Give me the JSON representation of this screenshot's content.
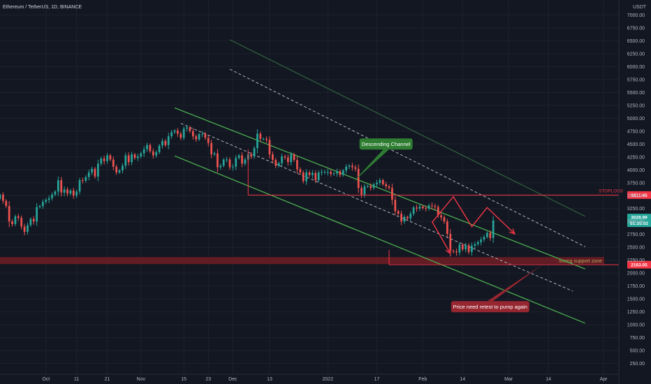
{
  "header": {
    "title": "Ethereum / TetherUS, 1D, BINANCE",
    "currency": "USDT"
  },
  "colors": {
    "background": "#131722",
    "bull": "#26a69a",
    "bear": "#ef5350",
    "channel": "#4caf50",
    "stoploss": "#f23645",
    "zone": "#6b1d24",
    "arrow": "#f23645",
    "price_tag": "#26a69a",
    "grid": "#1e222d"
  },
  "chart_data": {
    "type": "candlestick",
    "y_axis": {
      "min": 150,
      "max": 7100,
      "ticks": [
        7000,
        6750,
        6500,
        6250,
        6000,
        5750,
        5500,
        5250,
        5000,
        4750,
        4500,
        4250,
        4000,
        3750,
        3500,
        3250,
        3000,
        2750,
        2500,
        2250,
        2000,
        1750,
        1500,
        1250,
        1000,
        750,
        500,
        250
      ],
      "tick_labels": [
        "7000.00",
        "6750.00",
        "6500.00",
        "6250.00",
        "6000.00",
        "5750.00",
        "5500.00",
        "5250.00",
        "5000.00",
        "4750.00",
        "4500.00",
        "4250.00",
        "4000.00",
        "3750.00",
        "3500.00",
        "3250.00",
        "3000.00",
        "2750.00",
        "2500.00",
        "2250.00",
        "2000.00",
        "1750.00",
        "1500.00",
        "1250.00",
        "1000.00",
        "750.00",
        "500.00",
        "250.00"
      ]
    },
    "x_axis": {
      "start": "2021-09-16",
      "end": "2022-04-06",
      "ticks": [
        {
          "date": "2021-10-01",
          "label": "Oct"
        },
        {
          "date": "2021-10-11",
          "label": "11"
        },
        {
          "date": "2021-10-21",
          "label": "21"
        },
        {
          "date": "2021-11-01",
          "label": "Nov"
        },
        {
          "date": "2021-11-15",
          "label": "15"
        },
        {
          "date": "2021-11-23",
          "label": "23"
        },
        {
          "date": "2021-12-01",
          "label": "Dec"
        },
        {
          "date": "2021-12-13",
          "label": "13"
        },
        {
          "date": "2022-01-01",
          "label": "2022"
        },
        {
          "date": "2022-01-17",
          "label": "17"
        },
        {
          "date": "2022-02-01",
          "label": "Feb"
        },
        {
          "date": "2022-02-14",
          "label": "14"
        },
        {
          "date": "2022-03-01",
          "label": "Mar"
        },
        {
          "date": "2022-03-14",
          "label": "14"
        },
        {
          "date": "2022-04-01",
          "label": "Apr"
        }
      ]
    },
    "close_series": [
      3520,
      3400,
      3300,
      3000,
      2950,
      3100,
      3070,
      2900,
      2800,
      2930,
      3050,
      3000,
      3280,
      3300,
      3380,
      3420,
      3450,
      3520,
      3580,
      3800,
      3560,
      3620,
      3540,
      3600,
      3500,
      3580,
      3800,
      3790,
      3860,
      3950,
      4020,
      3870,
      4120,
      4220,
      4170,
      4280,
      4200,
      4060,
      3950,
      3990,
      4080,
      4280,
      4150,
      4300,
      4230,
      4260,
      4320,
      4400,
      4480,
      4360,
      4280,
      4340,
      4470,
      4560,
      4480,
      4650,
      4730,
      4760,
      4700,
      4620,
      4800,
      4820,
      4750,
      4650,
      4590,
      4690,
      4700,
      4620,
      4520,
      4300,
      4320,
      4050,
      4080,
      4200,
      4200,
      4050,
      4060,
      4230,
      4280,
      4120,
      4200,
      4300,
      4260,
      4420,
      4700,
      4600,
      4600,
      4580,
      4300,
      4190,
      4080,
      4130,
      4260,
      4240,
      4150,
      4300,
      4190,
      4010,
      3950,
      3780,
      3950,
      3900,
      3940,
      3800,
      3950,
      3960,
      3960,
      3960,
      3920,
      3930,
      3970,
      3900,
      3990,
      4060,
      4080,
      4050,
      4020,
      3650,
      3520,
      3680,
      3690,
      3650,
      3720,
      3750,
      3800,
      3720,
      3680,
      3650,
      3420,
      3200,
      3150,
      3000,
      3090,
      3060,
      3150,
      3270,
      3250,
      3290,
      3260,
      3250,
      3310,
      3300,
      3280,
      3120,
      3080,
      3000,
      2760,
      2430,
      2420,
      2400,
      2550,
      2460,
      2540,
      2410,
      2530,
      2560,
      2600,
      2650,
      2700,
      2780,
      2680,
      3020
    ],
    "series_start": "2021-09-16",
    "last_price": 3028.99,
    "countdown": "01:35:02",
    "levels": [
      {
        "name": "STOPLOSS",
        "price": 3511.45,
        "label": "3511.45"
      },
      {
        "name": "support",
        "price": 2163.05,
        "label": "2163.05"
      }
    ],
    "price_tag_label": "3028.99",
    "support_zone": {
      "low": 2175,
      "high": 2310,
      "label": "strong support zone"
    },
    "channels": [
      {
        "style": "solid",
        "color": "#4caf50",
        "from": [
          "2021-11-12",
          5200
        ],
        "to": [
          "2022-03-26",
          2080
        ]
      },
      {
        "style": "solid",
        "color": "#4caf50",
        "from": [
          "2021-11-12",
          4270
        ],
        "to": [
          "2022-03-26",
          1030
        ]
      },
      {
        "style": "dashed",
        "color": "#b2b5be",
        "from": [
          "2021-11-14",
          4900
        ],
        "to": [
          "2022-03-22",
          1650
        ]
      },
      {
        "style": "dashed",
        "color": "#b2b5be",
        "from": [
          "2021-11-30",
          5950
        ],
        "to": [
          "2022-03-26",
          2510
        ]
      },
      {
        "style": "solid",
        "color": "#2e5e3a",
        "from": [
          "2021-11-30",
          6520
        ],
        "to": [
          "2022-03-26",
          3100
        ]
      }
    ],
    "projection_up": [
      [
        "2022-02-04",
        2980
      ],
      [
        "2022-02-11",
        3480
      ],
      [
        "2022-02-17",
        2900
      ],
      [
        "2022-02-22",
        3270
      ],
      [
        "2022-03-03",
        2760
      ]
    ],
    "projection_down": [
      [
        "2022-02-04",
        3000
      ],
      [
        "2022-02-10",
        2380
      ]
    ],
    "annotations": [
      {
        "text": "Descending Channel",
        "anchor": [
          "2022-01-20",
          4500
        ],
        "pointer": [
          "2022-01-09",
          3750
        ],
        "color": "#2e7d32"
      },
      {
        "text": "Price need retest to pump again",
        "anchor": [
          "2022-02-23",
          1350
        ],
        "pointer": [
          "2022-03-12",
          2163.05
        ],
        "color": "#962630"
      }
    ]
  }
}
